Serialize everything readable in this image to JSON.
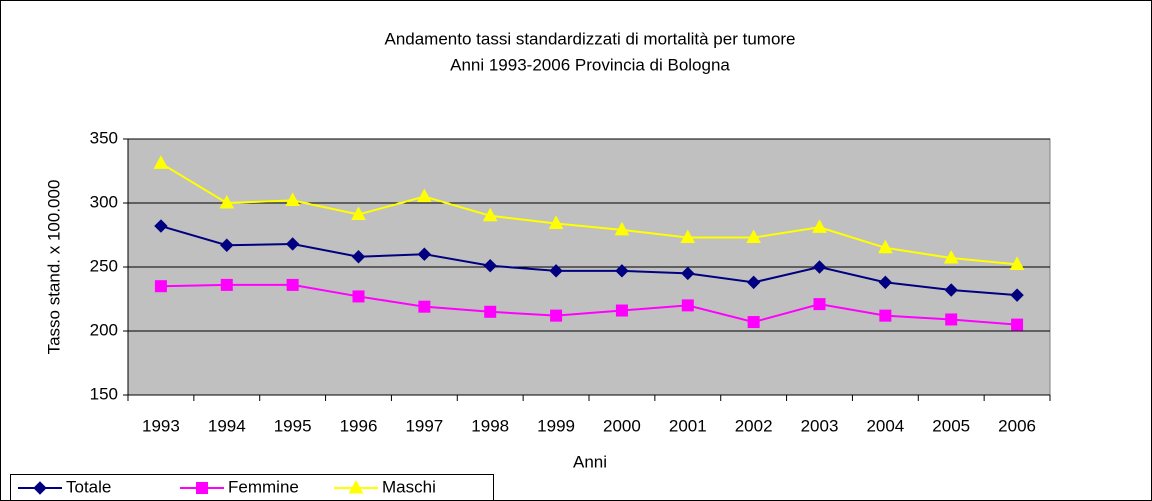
{
  "chart_data": {
    "type": "line",
    "title": [
      "Andamento tassi standardizzati di mortalità per tumore",
      "Anni 1993-2006 Provincia di Bologna"
    ],
    "x_label": "Anni",
    "y_label": "Tasso stand. x 100.000",
    "categories": [
      "1993",
      "1994",
      "1995",
      "1996",
      "1997",
      "1998",
      "1999",
      "2000",
      "2001",
      "2002",
      "2003",
      "2004",
      "2005",
      "2006"
    ],
    "series": [
      {
        "name": "Totale",
        "color": "#000080",
        "marker": "diamond",
        "values": [
          282,
          267,
          268,
          258,
          260,
          251,
          247,
          247,
          245,
          238,
          250,
          238,
          232,
          228
        ]
      },
      {
        "name": "Femmine",
        "color": "#ff00ff",
        "marker": "square",
        "values": [
          235,
          236,
          236,
          227,
          219,
          215,
          212,
          216,
          220,
          207,
          221,
          212,
          209,
          205
        ]
      },
      {
        "name": "Maschi",
        "color": "#ffff00",
        "marker": "triangle",
        "values": [
          331,
          300,
          302,
          291,
          305,
          290,
          284,
          279,
          273,
          273,
          281,
          265,
          257,
          252
        ]
      }
    ],
    "ylim": [
      150,
      350
    ],
    "yticks": [
      150,
      200,
      250,
      300,
      350
    ],
    "grid": true,
    "legend": "bottom-left"
  }
}
